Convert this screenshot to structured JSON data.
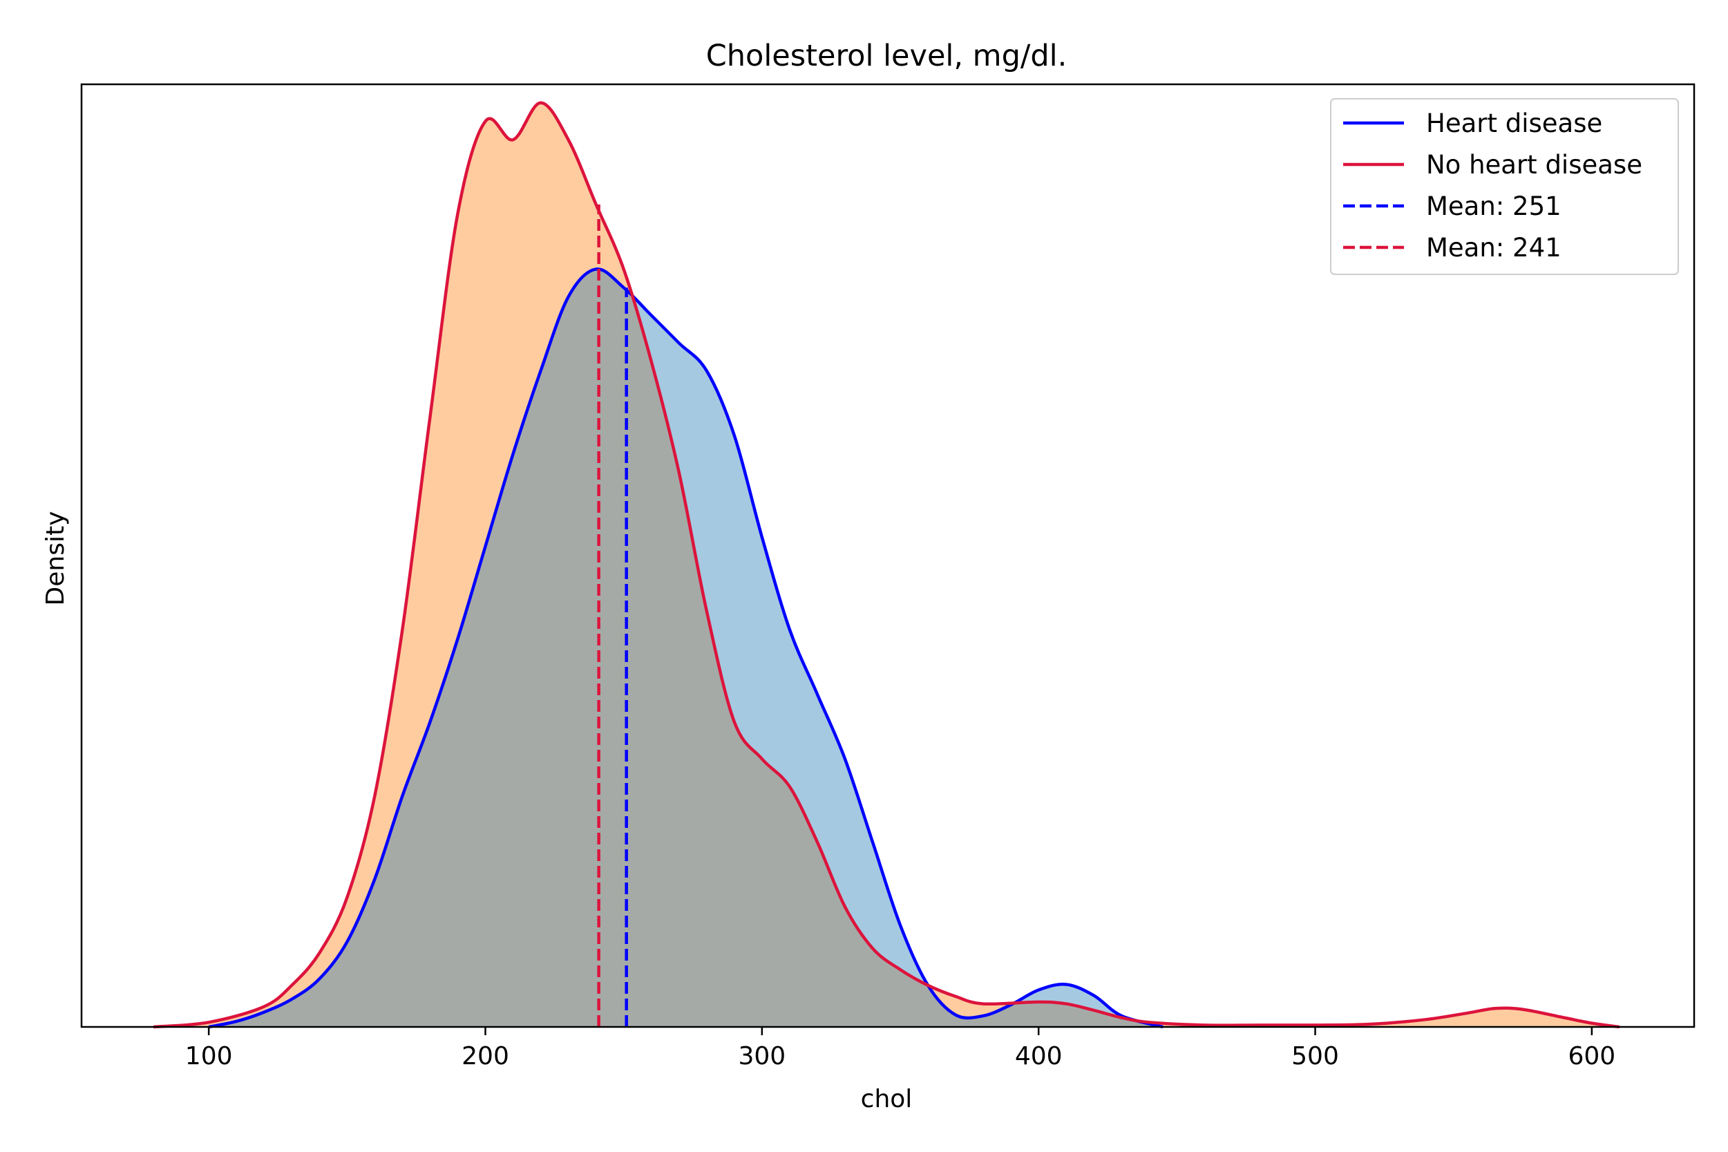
{
  "chart_data": {
    "type": "area",
    "title": "Cholesterol level, mg/dl.",
    "xlabel": "chol",
    "ylabel": "Density",
    "xlim": [
      54,
      637
    ],
    "ylim": [
      0,
      0.0102
    ],
    "x_ticks": [
      100,
      200,
      300,
      400,
      500,
      600
    ],
    "y_ticks_shown": false,
    "grid": false,
    "legend_position": "top-right",
    "series": [
      {
        "name": "Heart disease",
        "line_color": "#0000ff",
        "fill_color": "#1f77b4",
        "points": [
          [
            100,
            0.0
          ],
          [
            110,
            6e-05
          ],
          [
            120,
            0.00016
          ],
          [
            130,
            0.0003
          ],
          [
            140,
            0.00052
          ],
          [
            150,
            0.00092
          ],
          [
            160,
            0.0016
          ],
          [
            170,
            0.0025
          ],
          [
            180,
            0.0033
          ],
          [
            190,
            0.0042
          ],
          [
            200,
            0.0052
          ],
          [
            210,
            0.0062
          ],
          [
            220,
            0.0071
          ],
          [
            230,
            0.0079
          ],
          [
            240,
            0.0082
          ],
          [
            250,
            0.008
          ],
          [
            260,
            0.0077
          ],
          [
            270,
            0.0074
          ],
          [
            280,
            0.0071
          ],
          [
            290,
            0.0064
          ],
          [
            300,
            0.0053
          ],
          [
            310,
            0.0043
          ],
          [
            320,
            0.0036
          ],
          [
            330,
            0.0029
          ],
          [
            340,
            0.002
          ],
          [
            350,
            0.0011
          ],
          [
            360,
            0.00045
          ],
          [
            370,
            0.00013
          ],
          [
            380,
            0.00012
          ],
          [
            390,
            0.00024
          ],
          [
            400,
            0.0004
          ],
          [
            410,
            0.00046
          ],
          [
            420,
            0.00034
          ],
          [
            430,
            0.00012
          ],
          [
            445,
            0.0
          ]
        ]
      },
      {
        "name": "No heart disease",
        "line_color": "#dc143c",
        "fill_color": "#ff7f0e",
        "points": [
          [
            80,
            0.0
          ],
          [
            100,
            5e-05
          ],
          [
            120,
            0.00022
          ],
          [
            130,
            0.00045
          ],
          [
            140,
            0.0008
          ],
          [
            150,
            0.0014
          ],
          [
            160,
            0.0025
          ],
          [
            170,
            0.0043
          ],
          [
            180,
            0.0066
          ],
          [
            190,
            0.0088
          ],
          [
            200,
            0.0098
          ],
          [
            210,
            0.0096
          ],
          [
            220,
            0.01
          ],
          [
            230,
            0.0096
          ],
          [
            240,
            0.0089
          ],
          [
            250,
            0.0082
          ],
          [
            260,
            0.0072
          ],
          [
            270,
            0.006
          ],
          [
            280,
            0.0045
          ],
          [
            290,
            0.0033
          ],
          [
            300,
            0.0029
          ],
          [
            310,
            0.0026
          ],
          [
            320,
            0.002
          ],
          [
            330,
            0.0013
          ],
          [
            340,
            0.00085
          ],
          [
            350,
            0.00062
          ],
          [
            360,
            0.00045
          ],
          [
            370,
            0.00033
          ],
          [
            380,
            0.00025
          ],
          [
            400,
            0.00027
          ],
          [
            410,
            0.00025
          ],
          [
            420,
            0.00018
          ],
          [
            430,
            0.0001
          ],
          [
            440,
            5e-05
          ],
          [
            460,
            2e-05
          ],
          [
            480,
            2e-05
          ],
          [
            500,
            2e-05
          ],
          [
            520,
            3e-05
          ],
          [
            540,
            8e-05
          ],
          [
            555,
            0.00015
          ],
          [
            565,
            0.0002
          ],
          [
            575,
            0.00019
          ],
          [
            590,
            0.0001
          ],
          [
            600,
            4e-05
          ],
          [
            610,
            0.0
          ]
        ]
      }
    ],
    "mean_lines": [
      {
        "name": "Mean: 251",
        "x": 251,
        "y_top": 0.008,
        "color": "#0000ff",
        "style": "dashed"
      },
      {
        "name": "Mean: 241",
        "x": 241,
        "y_top": 0.0089,
        "color": "#dc143c",
        "style": "dashed"
      }
    ]
  }
}
